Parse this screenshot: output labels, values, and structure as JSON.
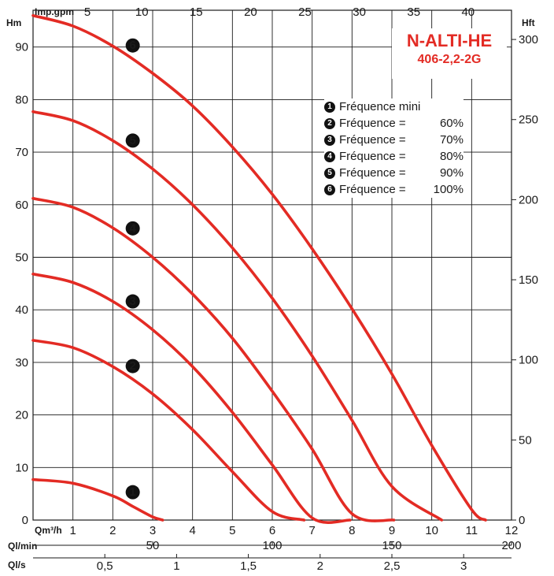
{
  "colors": {
    "curve": "#e32b24",
    "grid": "#1a1a1a",
    "title": "#e32b24"
  },
  "title": {
    "main": "N-ALTI-HE",
    "sub": "406-2,2-2G"
  },
  "legend": [
    {
      "marker": "1",
      "label": "Fréquence mini",
      "value": ""
    },
    {
      "marker": "2",
      "label": "Fréquence =",
      "value": "60%"
    },
    {
      "marker": "3",
      "label": "Fréquence =",
      "value": "70%"
    },
    {
      "marker": "4",
      "label": "Fréquence =",
      "value": "80%"
    },
    {
      "marker": "5",
      "label": "Fréquence =",
      "value": "90%"
    },
    {
      "marker": "6",
      "label": "Fréquence =",
      "value": "100%"
    }
  ],
  "chart_data": {
    "type": "line",
    "grid": true,
    "x_unit_label": "Qm³/h",
    "xlim": [
      0,
      12
    ],
    "ylim": [
      0,
      97
    ],
    "y_left_label": "Hm",
    "y_left_ticks": [
      0,
      10,
      20,
      30,
      40,
      50,
      60,
      70,
      80,
      90
    ],
    "y_right_label": "Hft",
    "y_right_ticks": [
      "0",
      "50",
      "100",
      "150",
      "200",
      "250",
      "300"
    ],
    "x_bottom_ticks": [
      "1",
      "2",
      "3",
      "4",
      "5",
      "6",
      "7",
      "8",
      "9",
      "10",
      "11",
      "12"
    ],
    "top_axis": {
      "label": "Imp.gpm",
      "ticks": [
        "5",
        "10",
        "15",
        "20",
        "25",
        "30",
        "35",
        "40"
      ]
    },
    "lmin_axis": {
      "label": "Ql/min",
      "ticks": [
        "50",
        "100",
        "150",
        "200"
      ]
    },
    "ls_axis": {
      "label": "Ql/s",
      "ticks": [
        "0,5",
        "1",
        "1,5",
        "2",
        "2,5",
        "3"
      ]
    },
    "series": [
      {
        "marker": "1",
        "shutoff": 7.7,
        "x": [
          0,
          1,
          2,
          2.5,
          3,
          3.25
        ],
        "y": [
          7.7,
          7.0,
          4.6,
          2.6,
          0.6,
          0
        ]
      },
      {
        "marker": "2",
        "shutoff": 34.2,
        "x": [
          0,
          1,
          2,
          3,
          4,
          5,
          6,
          6.8
        ],
        "y": [
          34.2,
          32.8,
          29.2,
          24.0,
          17.2,
          9.2,
          1.6,
          0
        ]
      },
      {
        "marker": "3",
        "shutoff": 46.8,
        "x": [
          0,
          1,
          2,
          3,
          4,
          5,
          6,
          7,
          7.95
        ],
        "y": [
          46.8,
          45.2,
          41.6,
          36.2,
          29.2,
          20.5,
          10.5,
          0.4,
          0
        ]
      },
      {
        "marker": "4",
        "shutoff": 61.2,
        "x": [
          0,
          1,
          2,
          3,
          4,
          5,
          6,
          7,
          8,
          9.05
        ],
        "y": [
          61.2,
          59.5,
          55.6,
          50.0,
          43.0,
          34.6,
          24.5,
          13.5,
          1.2,
          0
        ]
      },
      {
        "marker": "5",
        "shutoff": 77.7,
        "x": [
          0,
          1,
          2,
          3,
          4,
          5,
          6,
          7,
          8,
          9,
          10.25
        ],
        "y": [
          77.7,
          76.0,
          72.2,
          66.8,
          60.0,
          51.8,
          42.2,
          31.2,
          19.0,
          6.4,
          0
        ]
      },
      {
        "marker": "6",
        "shutoff": 96.0,
        "x": [
          0,
          1,
          2,
          3,
          4,
          5,
          6,
          7,
          8,
          9,
          10,
          11,
          11.35
        ],
        "y": [
          96.0,
          94.0,
          90.2,
          85.0,
          78.8,
          71.0,
          62.0,
          51.6,
          40.2,
          27.8,
          14.2,
          2.0,
          0
        ]
      }
    ]
  }
}
